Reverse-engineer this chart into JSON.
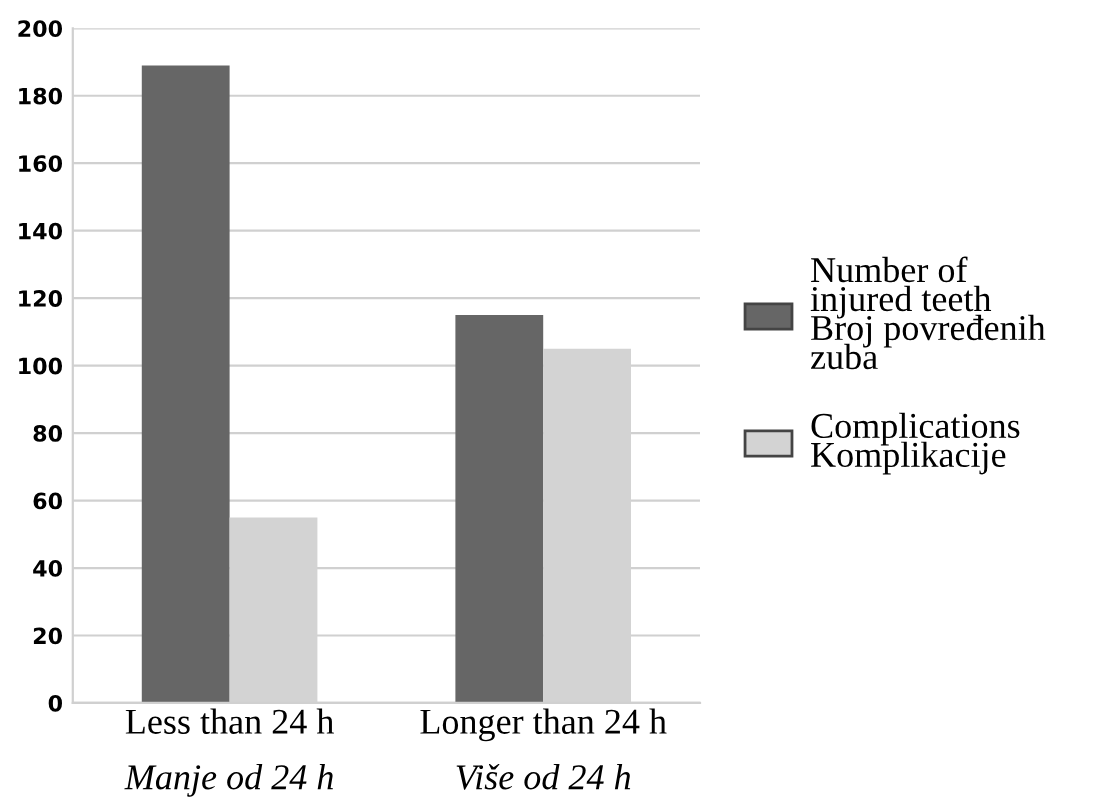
{
  "chart_data": {
    "type": "bar",
    "categories": [
      "Less than 24 h\nManje od 24 h",
      "Longer than 24 h\nViše od 24 h"
    ],
    "series": [
      {
        "name": "Number of\ninjured teeth\nBroj povređenih\nzuba",
        "color": "#666666",
        "values": [
          189,
          115
        ]
      },
      {
        "name": "Complications\nKomplikacije",
        "color": "#d3d3d3",
        "values": [
          55,
          105
        ]
      }
    ],
    "ylim": [
      0,
      200
    ],
    "yticks": [
      0,
      20,
      40,
      60,
      80,
      100,
      120,
      140,
      160,
      180,
      200
    ],
    "grid": "y",
    "legend": "right"
  }
}
